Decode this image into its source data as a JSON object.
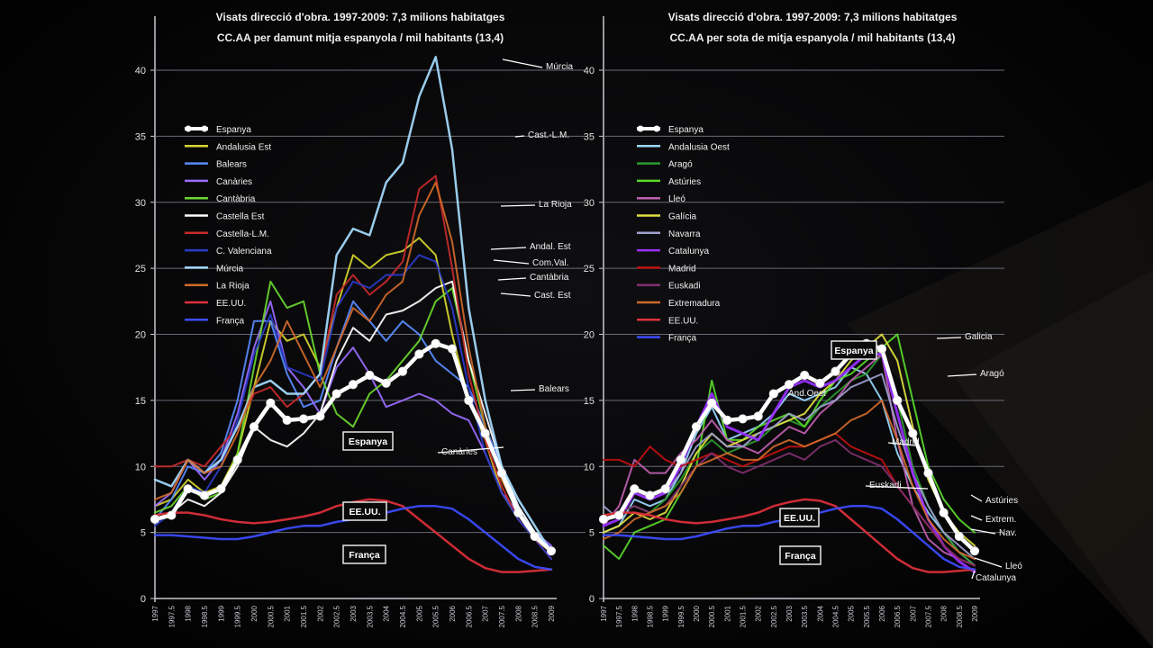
{
  "chart_data": [
    {
      "type": "line",
      "title": "Visats direcció d'obra. 1997-2009: 7,3 milions habitatges",
      "subtitle": "CC.AA per damunt mitja espanyola / mil habitants (13,4)",
      "xlabel": "",
      "ylabel": "",
      "ylim": [
        0,
        40
      ],
      "yticks": [
        0,
        5,
        10,
        15,
        20,
        25,
        30,
        35,
        40
      ],
      "grid": true,
      "legend_position": "left",
      "x": [
        1997.0,
        1997.5,
        1998.0,
        1998.5,
        1999.0,
        1999.5,
        2000.0,
        2000.5,
        2001.0,
        2001.5,
        2002.0,
        2002.5,
        2003.0,
        2003.5,
        2004.0,
        2004.5,
        2005.0,
        2005.5,
        2006.0,
        2006.5,
        2007.0,
        2007.5,
        2008.0,
        2008.5,
        2009.0
      ],
      "series": [
        {
          "name": "Espanya",
          "color": "#ffffff",
          "width": 4.5,
          "marker": true,
          "values": [
            6.0,
            6.3,
            8.3,
            7.8,
            8.3,
            10.5,
            13.0,
            14.8,
            13.5,
            13.6,
            13.8,
            15.5,
            16.2,
            16.9,
            16.3,
            17.2,
            18.5,
            19.3,
            18.9,
            15.0,
            12.5,
            9.5,
            6.5,
            4.7,
            3.6
          ]
        },
        {
          "name": "Andalusia Est",
          "color": "#d6d630",
          "width": 2,
          "values": [
            7.0,
            7.5,
            9.0,
            8.0,
            8.5,
            11.0,
            16.0,
            21.0,
            19.5,
            20.0,
            17.5,
            22.0,
            26.0,
            25.0,
            26.0,
            26.3,
            27.3,
            26.0,
            20.0,
            15.0,
            12.0,
            8.0,
            6.0,
            4.5,
            3.5
          ]
        },
        {
          "name": "Balears",
          "color": "#5a8cff",
          "width": 2,
          "values": [
            6.0,
            7.5,
            10.0,
            9.5,
            11.0,
            15.0,
            21.0,
            21.0,
            17.0,
            14.5,
            15.0,
            19.0,
            22.5,
            21.0,
            19.5,
            21.0,
            20.0,
            18.0,
            17.0,
            16.0,
            13.0,
            10.0,
            7.0,
            5.0,
            3.8
          ]
        },
        {
          "name": "Canàries",
          "color": "#9a6cff",
          "width": 2,
          "values": [
            7.0,
            8.0,
            10.5,
            9.0,
            10.5,
            14.0,
            19.0,
            22.5,
            17.5,
            16.0,
            14.0,
            17.5,
            19.0,
            17.0,
            14.5,
            15.0,
            15.5,
            15.0,
            14.0,
            13.5,
            11.0,
            8.0,
            6.5,
            5.0,
            4.0
          ]
        },
        {
          "name": "Cantàbria",
          "color": "#6ad830",
          "width": 2,
          "values": [
            6.5,
            7.0,
            8.5,
            7.5,
            8.0,
            11.0,
            17.5,
            24.0,
            22.0,
            22.5,
            17.0,
            14.0,
            13.0,
            15.5,
            16.5,
            18.0,
            19.5,
            22.5,
            23.5,
            18.0,
            13.0,
            9.0,
            6.5,
            5.0,
            3.5
          ]
        },
        {
          "name": "Castella Est",
          "color": "#ffffff",
          "width": 2,
          "values": [
            6.0,
            6.5,
            7.5,
            7.0,
            8.0,
            10.0,
            13.0,
            12.0,
            11.5,
            12.5,
            14.0,
            18.0,
            20.5,
            19.5,
            21.5,
            21.8,
            22.5,
            23.5,
            24.0,
            18.0,
            14.0,
            10.0,
            7.0,
            5.0,
            3.5
          ]
        },
        {
          "name": "Castella-L.M.",
          "color": "#c82a2a",
          "width": 2,
          "values": [
            10.0,
            10.0,
            10.5,
            10.0,
            11.5,
            13.0,
            15.5,
            16.0,
            14.5,
            15.5,
            17.0,
            23.0,
            24.5,
            23.0,
            24.0,
            25.5,
            31.0,
            32.0,
            25.0,
            17.0,
            12.0,
            8.5,
            6.0,
            4.5,
            3.0
          ]
        },
        {
          "name": "C. Valenciana",
          "color": "#2a3cc8",
          "width": 2,
          "values": [
            5.5,
            6.5,
            8.5,
            8.0,
            10.0,
            13.5,
            18.5,
            21.5,
            17.5,
            17.0,
            16.5,
            22.0,
            24.0,
            23.5,
            24.5,
            24.5,
            26.0,
            25.5,
            22.0,
            16.0,
            11.0,
            8.0,
            6.0,
            4.5,
            3.0
          ]
        },
        {
          "name": "Múrcia",
          "color": "#a6dcff",
          "width": 2.5,
          "values": [
            9.0,
            8.5,
            10.5,
            9.5,
            10.5,
            13.0,
            16.0,
            16.5,
            15.5,
            15.5,
            17.0,
            26.0,
            28.0,
            27.5,
            31.5,
            33.0,
            38.0,
            41.0,
            34.0,
            22.0,
            15.0,
            10.0,
            7.5,
            5.5,
            3.5
          ]
        },
        {
          "name": "La Rioja",
          "color": "#d06a2a",
          "width": 2,
          "values": [
            7.5,
            8.0,
            10.5,
            9.5,
            10.0,
            12.5,
            16.0,
            18.0,
            21.0,
            18.5,
            16.0,
            19.0,
            22.0,
            21.0,
            23.0,
            24.0,
            29.0,
            31.5,
            27.0,
            19.0,
            13.0,
            9.0,
            6.5,
            4.5,
            3.5
          ]
        },
        {
          "name": "EE.UU.",
          "color": "#e0303a",
          "width": 2.5,
          "values": [
            6.3,
            6.5,
            6.5,
            6.3,
            6.0,
            5.8,
            5.7,
            5.8,
            6.0,
            6.2,
            6.5,
            7.0,
            7.3,
            7.5,
            7.4,
            7.0,
            6.0,
            5.0,
            4.0,
            3.0,
            2.3,
            2.0,
            2.0,
            2.1,
            2.2
          ]
        },
        {
          "name": "França",
          "color": "#3d4cff",
          "width": 2.5,
          "values": [
            4.8,
            4.8,
            4.7,
            4.6,
            4.5,
            4.5,
            4.7,
            5.0,
            5.3,
            5.5,
            5.5,
            5.8,
            6.0,
            6.3,
            6.5,
            6.8,
            7.0,
            7.0,
            6.8,
            6.0,
            5.0,
            4.0,
            3.0,
            2.4,
            2.2
          ]
        }
      ],
      "end_labels": [
        "Múrcia",
        "Cast.-L.M.",
        "La Rioja",
        "Andal. Est",
        "Com.Val.",
        "Cantàbria",
        "Cast. Est",
        "Balears",
        "Canàries"
      ],
      "boxed_labels": [
        "Espanya",
        "EE.UU.",
        "França"
      ]
    },
    {
      "type": "line",
      "title": "Visats direcció d'obra. 1997-2009: 7,3 milions habitatges",
      "subtitle": "CC.AA per sota de mitja espanyola / mil habitants (13,4)",
      "xlabel": "",
      "ylabel": "",
      "ylim": [
        0,
        40
      ],
      "yticks": [
        0,
        5,
        10,
        15,
        20,
        25,
        30,
        35,
        40
      ],
      "grid": true,
      "legend_position": "left",
      "x": [
        1997.0,
        1997.5,
        1998.0,
        1998.5,
        1999.0,
        1999.5,
        2000.0,
        2000.5,
        2001.0,
        2001.5,
        2002.0,
        2002.5,
        2003.0,
        2003.5,
        2004.0,
        2004.5,
        2005.0,
        2005.5,
        2006.0,
        2006.5,
        2007.0,
        2007.5,
        2008.0,
        2008.5,
        2009.0
      ],
      "series": [
        {
          "name": "Espanya",
          "color": "#ffffff",
          "width": 4.5,
          "marker": true,
          "values": [
            6.0,
            6.3,
            8.3,
            7.8,
            8.3,
            10.5,
            13.0,
            14.8,
            13.5,
            13.6,
            13.8,
            15.5,
            16.2,
            16.9,
            16.3,
            17.2,
            18.5,
            19.3,
            18.9,
            15.0,
            12.5,
            9.5,
            6.5,
            4.7,
            3.6
          ]
        },
        {
          "name": "Andalusia Oest",
          "color": "#9ad8ff",
          "width": 2,
          "values": [
            5.0,
            5.5,
            7.5,
            7.0,
            7.5,
            9.5,
            12.5,
            14.5,
            12.0,
            12.5,
            13.0,
            14.0,
            15.5,
            15.0,
            15.5,
            16.0,
            17.5,
            17.0,
            15.0,
            11.0,
            8.5,
            6.5,
            5.0,
            3.5,
            2.5
          ]
        },
        {
          "name": "Aragó",
          "color": "#2e9a2e",
          "width": 2,
          "values": [
            6.0,
            6.5,
            7.0,
            6.5,
            7.5,
            9.0,
            11.0,
            12.0,
            11.0,
            11.5,
            12.0,
            13.0,
            13.5,
            13.0,
            14.5,
            15.5,
            16.5,
            17.0,
            18.5,
            15.0,
            10.0,
            7.0,
            5.0,
            3.5,
            2.5
          ]
        },
        {
          "name": "Astúries",
          "color": "#5ad82a",
          "width": 2,
          "values": [
            4.0,
            3.0,
            5.0,
            5.5,
            6.0,
            8.0,
            10.0,
            16.5,
            12.0,
            12.0,
            13.0,
            13.5,
            14.0,
            13.0,
            15.0,
            16.5,
            17.0,
            18.0,
            19.0,
            20.0,
            15.0,
            10.0,
            7.5,
            6.0,
            5.0
          ]
        },
        {
          "name": "Lleó",
          "color": "#c060b0",
          "width": 2,
          "values": [
            5.5,
            7.0,
            10.5,
            9.5,
            9.5,
            11.0,
            12.0,
            13.5,
            12.0,
            11.5,
            11.0,
            12.0,
            13.0,
            12.5,
            14.0,
            15.0,
            16.5,
            17.5,
            18.5,
            12.0,
            7.0,
            4.5,
            3.5,
            3.0,
            2.5
          ]
        },
        {
          "name": "Galícia",
          "color": "#e0e040",
          "width": 2,
          "values": [
            5.0,
            5.5,
            6.5,
            6.0,
            6.5,
            8.5,
            11.0,
            12.5,
            11.5,
            12.0,
            12.5,
            13.0,
            13.5,
            14.0,
            15.5,
            16.5,
            18.0,
            19.0,
            20.0,
            18.0,
            13.0,
            9.0,
            6.5,
            5.0,
            4.0
          ]
        },
        {
          "name": "Navarra",
          "color": "#a0a0d0",
          "width": 2,
          "values": [
            7.0,
            6.0,
            8.0,
            7.5,
            8.0,
            9.5,
            11.5,
            12.5,
            11.5,
            11.5,
            12.5,
            13.0,
            14.0,
            13.5,
            14.5,
            15.0,
            16.0,
            16.5,
            17.0,
            13.0,
            9.5,
            7.0,
            5.0,
            4.0,
            3.0
          ]
        },
        {
          "name": "Catalunya",
          "color": "#9a30ff",
          "width": 3,
          "values": [
            5.5,
            6.0,
            8.0,
            7.5,
            8.0,
            10.0,
            13.0,
            15.5,
            13.0,
            12.5,
            12.0,
            14.0,
            16.0,
            16.5,
            16.0,
            16.5,
            17.5,
            18.5,
            18.5,
            14.0,
            9.5,
            6.0,
            4.0,
            2.8,
            2.0
          ]
        },
        {
          "name": "Madrid",
          "color": "#c01010",
          "width": 2,
          "values": [
            10.5,
            10.5,
            10.0,
            11.5,
            10.5,
            10.0,
            10.5,
            11.0,
            10.5,
            10.0,
            10.5,
            11.0,
            11.5,
            11.5,
            12.0,
            12.5,
            11.5,
            11.0,
            10.5,
            8.5,
            7.0,
            5.5,
            4.0,
            3.0,
            2.5
          ]
        },
        {
          "name": "Euskadi",
          "color": "#803070",
          "width": 2,
          "values": [
            6.0,
            6.5,
            7.0,
            6.5,
            7.0,
            8.5,
            10.0,
            11.0,
            10.0,
            9.5,
            10.0,
            10.5,
            11.0,
            10.5,
            11.5,
            12.0,
            11.0,
            10.5,
            10.0,
            8.5,
            7.0,
            5.5,
            4.0,
            3.0,
            2.5
          ]
        },
        {
          "name": "Extremadura",
          "color": "#d06a2a",
          "width": 2,
          "values": [
            4.5,
            5.0,
            6.0,
            6.5,
            7.0,
            8.0,
            10.0,
            10.5,
            11.0,
            10.5,
            10.5,
            11.5,
            12.0,
            11.5,
            12.0,
            12.5,
            13.5,
            14.0,
            15.0,
            12.0,
            8.5,
            6.0,
            4.5,
            3.5,
            3.0
          ]
        },
        {
          "name": "EE.UU.",
          "color": "#e0303a",
          "width": 2.5,
          "values": [
            6.3,
            6.5,
            6.5,
            6.3,
            6.0,
            5.8,
            5.7,
            5.8,
            6.0,
            6.2,
            6.5,
            7.0,
            7.3,
            7.5,
            7.4,
            7.0,
            6.0,
            5.0,
            4.0,
            3.0,
            2.3,
            2.0,
            2.0,
            2.1,
            2.2
          ]
        },
        {
          "name": "França",
          "color": "#3d4cff",
          "width": 2.5,
          "values": [
            4.8,
            4.8,
            4.7,
            4.6,
            4.5,
            4.5,
            4.7,
            5.0,
            5.3,
            5.5,
            5.5,
            5.8,
            6.0,
            6.3,
            6.5,
            6.8,
            7.0,
            7.0,
            6.8,
            6.0,
            5.0,
            4.0,
            3.0,
            2.4,
            2.2
          ]
        }
      ],
      "end_labels": [
        "Galicia",
        "Aragó",
        "Madrid",
        "Euskadi",
        "Astúries",
        "Extrem.",
        "Nav.",
        "Lleó",
        "Catalunya"
      ],
      "inline_labels": [
        "And.Oest"
      ],
      "boxed_labels": [
        "Espanya",
        "EE.UU.",
        "França"
      ]
    }
  ]
}
